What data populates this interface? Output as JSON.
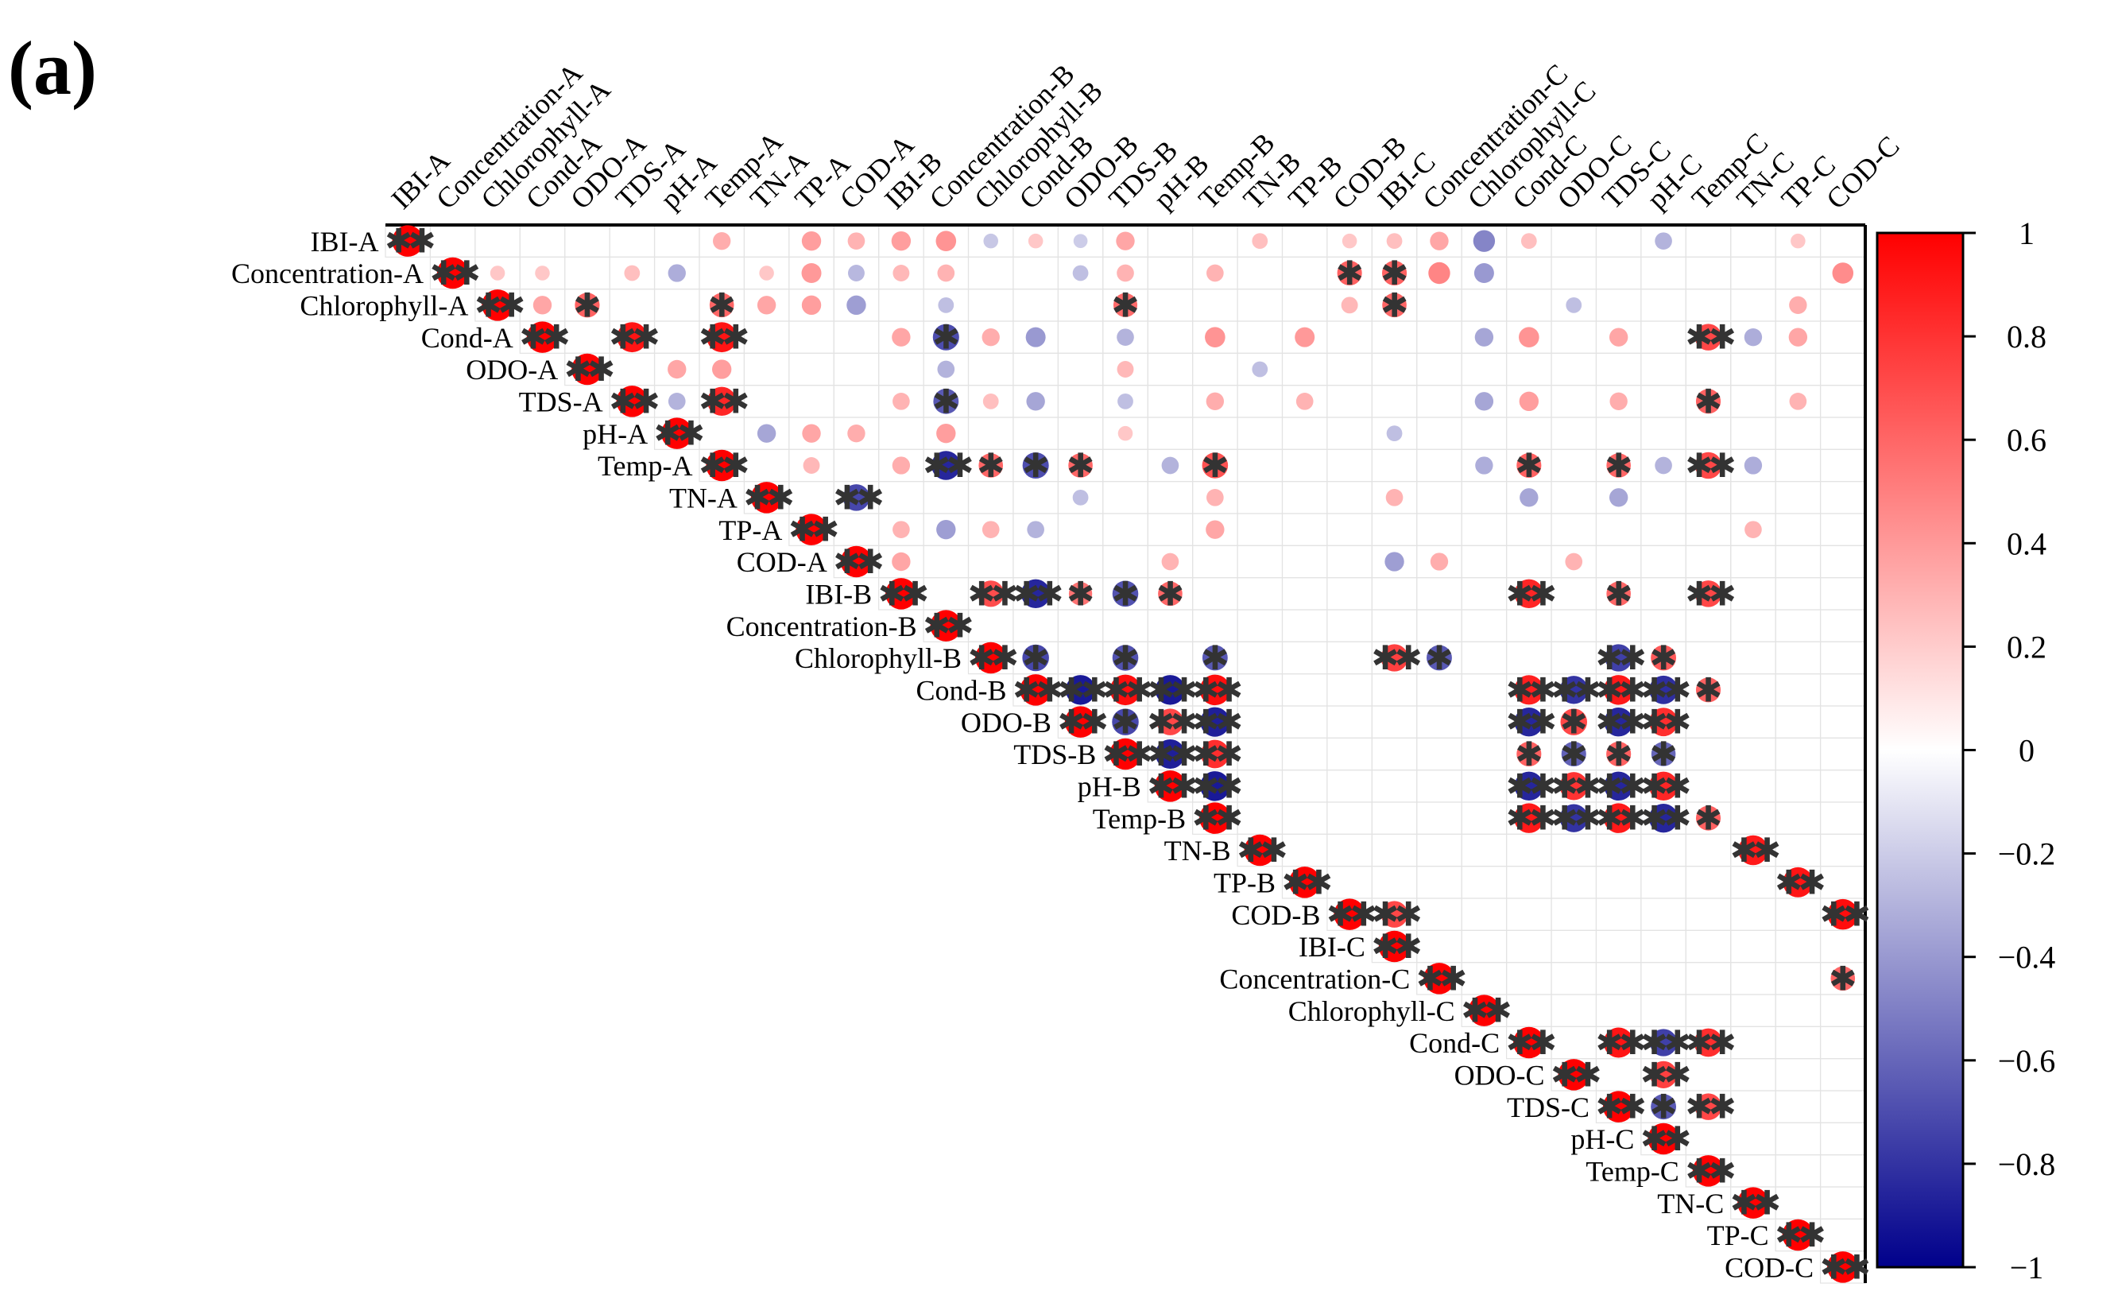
{
  "panel_label": "(a)",
  "chart_data": {
    "type": "heatmap",
    "subtype": "correlation-matrix-upper-triangle-circles",
    "variables": [
      "IBI-A",
      "Concentration-A",
      "Chlorophyll-A",
      "Cond-A",
      "ODO-A",
      "TDS-A",
      "pH-A",
      "Temp-A",
      "TN-A",
      "TP-A",
      "COD-A",
      "IBI-B",
      "Concentration-B",
      "Chlorophyll-B",
      "Cond-B",
      "ODO-B",
      "TDS-B",
      "pH-B",
      "Temp-B",
      "TN-B",
      "TP-B",
      "COD-B",
      "IBI-C",
      "Concentration-C",
      "Chlorophyll-C",
      "Cond-C",
      "ODO-C",
      "TDS-C",
      "pH-C",
      "Temp-C",
      "TN-C",
      "TP-C",
      "COD-C"
    ],
    "colorbar": {
      "range": [
        -1,
        1
      ],
      "ticks": [
        "1",
        "0.8",
        "0.6",
        "0.4",
        "0.2",
        "0",
        "−0.2",
        "−0.4",
        "−0.6",
        "−0.8",
        "−1"
      ],
      "colors": {
        "negative": "#00008B",
        "zero": "#FFFFFF",
        "positive": "#FF0000"
      }
    },
    "diagonal_value": 1,
    "diagonal_marker": "**",
    "significant_cells": [
      {
        "row": "IBI-A",
        "col": "IBI-A",
        "r": 1,
        "mark": "**"
      },
      {
        "row": "Concentration-A",
        "col": "COD-B",
        "r": 0.62,
        "mark": "*"
      },
      {
        "row": "Concentration-A",
        "col": "IBI-C",
        "r": 0.62,
        "mark": "*"
      },
      {
        "row": "Chlorophyll-A",
        "col": "ODO-A",
        "r": 0.62,
        "mark": "*"
      },
      {
        "row": "Chlorophyll-A",
        "col": "Temp-A",
        "r": 0.6,
        "mark": "*"
      },
      {
        "row": "Chlorophyll-A",
        "col": "TDS-B",
        "r": 0.58,
        "mark": "*"
      },
      {
        "row": "Chlorophyll-A",
        "col": "IBI-C",
        "r": 0.6,
        "mark": "*"
      },
      {
        "row": "Cond-A",
        "col": "TDS-A",
        "r": 0.92,
        "mark": "**"
      },
      {
        "row": "Cond-A",
        "col": "Temp-A",
        "r": 0.92,
        "mark": "**"
      },
      {
        "row": "Cond-A",
        "col": "Concentration-B",
        "r": -0.7,
        "mark": "*"
      },
      {
        "row": "Cond-A",
        "col": "Temp-C",
        "r": 0.72,
        "mark": "**"
      },
      {
        "row": "TDS-A",
        "col": "Temp-A",
        "r": 0.85,
        "mark": "**"
      },
      {
        "row": "TDS-A",
        "col": "Concentration-B",
        "r": -0.65,
        "mark": "*"
      },
      {
        "row": "TDS-A",
        "col": "Temp-C",
        "r": 0.62,
        "mark": "*"
      },
      {
        "row": "Temp-A",
        "col": "Concentration-B",
        "r": -0.85,
        "mark": "**"
      },
      {
        "row": "Temp-A",
        "col": "Chlorophyll-B",
        "r": 0.6,
        "mark": "*"
      },
      {
        "row": "Temp-A",
        "col": "Cond-B",
        "r": -0.7,
        "mark": "*"
      },
      {
        "row": "Temp-A",
        "col": "ODO-B",
        "r": 0.6,
        "mark": "*"
      },
      {
        "row": "Temp-A",
        "col": "Temp-B",
        "r": 0.68,
        "mark": "*"
      },
      {
        "row": "Temp-A",
        "col": "Cond-C",
        "r": 0.62,
        "mark": "*"
      },
      {
        "row": "Temp-A",
        "col": "TDS-C",
        "r": 0.6,
        "mark": "*"
      },
      {
        "row": "Temp-A",
        "col": "Temp-C",
        "r": 0.72,
        "mark": "**"
      },
      {
        "row": "TN-A",
        "col": "COD-A",
        "r": -0.72,
        "mark": "**"
      },
      {
        "row": "IBI-B",
        "col": "Chlorophyll-B",
        "r": 0.7,
        "mark": "**"
      },
      {
        "row": "IBI-B",
        "col": "Cond-B",
        "r": -0.85,
        "mark": "**"
      },
      {
        "row": "IBI-B",
        "col": "ODO-B",
        "r": 0.55,
        "mark": "*"
      },
      {
        "row": "IBI-B",
        "col": "TDS-B",
        "r": -0.68,
        "mark": "*"
      },
      {
        "row": "IBI-B",
        "col": "pH-B",
        "r": 0.6,
        "mark": "*"
      },
      {
        "row": "IBI-B",
        "col": "Cond-C",
        "r": 0.85,
        "mark": "**"
      },
      {
        "row": "IBI-B",
        "col": "TDS-C",
        "r": 0.6,
        "mark": "*"
      },
      {
        "row": "IBI-B",
        "col": "Temp-C",
        "r": 0.72,
        "mark": "**"
      },
      {
        "row": "Chlorophyll-B",
        "col": "Cond-B",
        "r": -0.72,
        "mark": "*"
      },
      {
        "row": "Chlorophyll-B",
        "col": "TDS-B",
        "r": -0.68,
        "mark": "*"
      },
      {
        "row": "Chlorophyll-B",
        "col": "Temp-B",
        "r": -0.65,
        "mark": "*"
      },
      {
        "row": "Chlorophyll-B",
        "col": "IBI-C",
        "r": 0.75,
        "mark": "**"
      },
      {
        "row": "Chlorophyll-B",
        "col": "Concentration-C",
        "r": -0.65,
        "mark": "*"
      },
      {
        "row": "Chlorophyll-B",
        "col": "TDS-C",
        "r": -0.75,
        "mark": "**"
      },
      {
        "row": "Chlorophyll-B",
        "col": "pH-C",
        "r": 0.65,
        "mark": "*"
      },
      {
        "row": "Cond-B",
        "col": "ODO-B",
        "r": -0.9,
        "mark": "**"
      },
      {
        "row": "Cond-B",
        "col": "TDS-B",
        "r": 0.95,
        "mark": "**"
      },
      {
        "row": "Cond-B",
        "col": "pH-B",
        "r": -0.9,
        "mark": "**"
      },
      {
        "row": "Cond-B",
        "col": "Temp-B",
        "r": 0.95,
        "mark": "**"
      },
      {
        "row": "Cond-B",
        "col": "Cond-C",
        "r": 0.88,
        "mark": "**"
      },
      {
        "row": "Cond-B",
        "col": "ODO-C",
        "r": -0.8,
        "mark": "**"
      },
      {
        "row": "Cond-B",
        "col": "TDS-C",
        "r": 0.9,
        "mark": "**"
      },
      {
        "row": "Cond-B",
        "col": "pH-C",
        "r": -0.82,
        "mark": "**"
      },
      {
        "row": "Cond-B",
        "col": "Temp-C",
        "r": 0.62,
        "mark": "*"
      },
      {
        "row": "ODO-B",
        "col": "TDS-B",
        "r": -0.72,
        "mark": "*"
      },
      {
        "row": "ODO-B",
        "col": "pH-B",
        "r": 0.72,
        "mark": "**"
      },
      {
        "row": "ODO-B",
        "col": "Temp-B",
        "r": -0.88,
        "mark": "**"
      },
      {
        "row": "ODO-B",
        "col": "Cond-C",
        "r": -0.85,
        "mark": "**"
      },
      {
        "row": "ODO-B",
        "col": "ODO-C",
        "r": 0.72,
        "mark": "*"
      },
      {
        "row": "ODO-B",
        "col": "TDS-C",
        "r": -0.85,
        "mark": "**"
      },
      {
        "row": "ODO-B",
        "col": "pH-C",
        "r": 0.82,
        "mark": "**"
      },
      {
        "row": "TDS-B",
        "col": "pH-B",
        "r": -0.88,
        "mark": "**"
      },
      {
        "row": "TDS-B",
        "col": "Temp-B",
        "r": 0.82,
        "mark": "**"
      },
      {
        "row": "TDS-B",
        "col": "Cond-C",
        "r": 0.62,
        "mark": "*"
      },
      {
        "row": "TDS-B",
        "col": "ODO-C",
        "r": -0.62,
        "mark": "*"
      },
      {
        "row": "TDS-B",
        "col": "TDS-C",
        "r": 0.62,
        "mark": "*"
      },
      {
        "row": "TDS-B",
        "col": "pH-C",
        "r": -0.6,
        "mark": "*"
      },
      {
        "row": "pH-B",
        "col": "Temp-B",
        "r": -0.9,
        "mark": "**"
      },
      {
        "row": "pH-B",
        "col": "Cond-C",
        "r": -0.85,
        "mark": "**"
      },
      {
        "row": "pH-B",
        "col": "ODO-C",
        "r": 0.8,
        "mark": "**"
      },
      {
        "row": "pH-B",
        "col": "TDS-C",
        "r": -0.85,
        "mark": "**"
      },
      {
        "row": "pH-B",
        "col": "pH-C",
        "r": 0.85,
        "mark": "**"
      },
      {
        "row": "Temp-B",
        "col": "Cond-C",
        "r": 0.9,
        "mark": "**"
      },
      {
        "row": "Temp-B",
        "col": "ODO-C",
        "r": -0.8,
        "mark": "**"
      },
      {
        "row": "Temp-B",
        "col": "TDS-C",
        "r": 0.9,
        "mark": "**"
      },
      {
        "row": "Temp-B",
        "col": "pH-C",
        "r": -0.85,
        "mark": "**"
      },
      {
        "row": "Temp-B",
        "col": "Temp-C",
        "r": 0.62,
        "mark": "*"
      },
      {
        "row": "TN-B",
        "col": "TN-C",
        "r": 0.9,
        "mark": "**"
      },
      {
        "row": "TP-B",
        "col": "TP-C",
        "r": 0.92,
        "mark": "**"
      },
      {
        "row": "COD-B",
        "col": "IBI-C",
        "r": 0.72,
        "mark": "**"
      },
      {
        "row": "COD-B",
        "col": "COD-C",
        "r": 0.95,
        "mark": "**"
      },
      {
        "row": "Concentration-C",
        "col": "COD-C",
        "r": 0.6,
        "mark": "*"
      },
      {
        "row": "Cond-C",
        "col": "TDS-C",
        "r": 0.92,
        "mark": "**"
      },
      {
        "row": "Cond-C",
        "col": "pH-C",
        "r": -0.75,
        "mark": "**"
      },
      {
        "row": "Cond-C",
        "col": "Temp-C",
        "r": 0.82,
        "mark": "**"
      },
      {
        "row": "ODO-C",
        "col": "pH-C",
        "r": 0.75,
        "mark": "**"
      },
      {
        "row": "TDS-C",
        "col": "pH-C",
        "r": -0.65,
        "mark": "*"
      },
      {
        "row": "TDS-C",
        "col": "Temp-C",
        "r": 0.72,
        "mark": "**"
      }
    ],
    "nonsignificant_cells": [
      {
        "row": "IBI-A",
        "col": "Temp-A",
        "r": 0.32
      },
      {
        "row": "IBI-A",
        "col": "TP-A",
        "r": 0.38
      },
      {
        "row": "IBI-A",
        "col": "COD-A",
        "r": 0.3
      },
      {
        "row": "IBI-A",
        "col": "IBI-B",
        "r": 0.38
      },
      {
        "row": "IBI-A",
        "col": "Concentration-B",
        "r": 0.42
      },
      {
        "row": "IBI-A",
        "col": "Chlorophyll-B",
        "r": -0.22
      },
      {
        "row": "IBI-A",
        "col": "Cond-B",
        "r": 0.22
      },
      {
        "row": "IBI-A",
        "col": "ODO-B",
        "r": -0.2
      },
      {
        "row": "IBI-A",
        "col": "TDS-B",
        "r": 0.35
      },
      {
        "row": "IBI-A",
        "col": "TN-B",
        "r": 0.25
      },
      {
        "row": "IBI-A",
        "col": "COD-B",
        "r": 0.22
      },
      {
        "row": "IBI-A",
        "col": "IBI-C",
        "r": 0.25
      },
      {
        "row": "IBI-A",
        "col": "Concentration-C",
        "r": 0.35
      },
      {
        "row": "IBI-A",
        "col": "Chlorophyll-C",
        "r": -0.48
      },
      {
        "row": "IBI-A",
        "col": "Cond-C",
        "r": 0.25
      },
      {
        "row": "IBI-A",
        "col": "pH-C",
        "r": -0.3
      },
      {
        "row": "IBI-A",
        "col": "TP-C",
        "r": 0.22
      },
      {
        "row": "Concentration-A",
        "col": "Chlorophyll-A",
        "r": 0.22
      },
      {
        "row": "Concentration-A",
        "col": "Cond-A",
        "r": 0.22
      },
      {
        "row": "Concentration-A",
        "col": "TDS-A",
        "r": 0.25
      },
      {
        "row": "Concentration-A",
        "col": "pH-A",
        "r": -0.32
      },
      {
        "row": "Concentration-A",
        "col": "TN-A",
        "r": 0.22
      },
      {
        "row": "Concentration-A",
        "col": "TP-A",
        "r": 0.4
      },
      {
        "row": "Concentration-A",
        "col": "COD-A",
        "r": -0.28
      },
      {
        "row": "Concentration-A",
        "col": "IBI-B",
        "r": 0.28
      },
      {
        "row": "Concentration-A",
        "col": "Concentration-B",
        "r": 0.3
      },
      {
        "row": "Concentration-A",
        "col": "ODO-B",
        "r": -0.25
      },
      {
        "row": "Concentration-A",
        "col": "TDS-B",
        "r": 0.3
      },
      {
        "row": "Concentration-A",
        "col": "Temp-B",
        "r": 0.3
      },
      {
        "row": "Concentration-A",
        "col": "Concentration-C",
        "r": 0.48
      },
      {
        "row": "Concentration-A",
        "col": "Chlorophyll-C",
        "r": -0.4
      },
      {
        "row": "Concentration-A",
        "col": "COD-C",
        "r": 0.45
      },
      {
        "row": "Chlorophyll-A",
        "col": "Cond-A",
        "r": 0.35
      },
      {
        "row": "Chlorophyll-A",
        "col": "TN-A",
        "r": 0.35
      },
      {
        "row": "Chlorophyll-A",
        "col": "TP-A",
        "r": 0.38
      },
      {
        "row": "Chlorophyll-A",
        "col": "COD-A",
        "r": -0.38
      },
      {
        "row": "Chlorophyll-A",
        "col": "Concentration-B",
        "r": -0.25
      },
      {
        "row": "Chlorophyll-A",
        "col": "COD-B",
        "r": 0.28
      },
      {
        "row": "Chlorophyll-A",
        "col": "ODO-C",
        "r": -0.25
      },
      {
        "row": "Chlorophyll-A",
        "col": "TP-C",
        "r": 0.32
      },
      {
        "row": "Cond-A",
        "col": "IBI-B",
        "r": 0.35
      },
      {
        "row": "Cond-A",
        "col": "Chlorophyll-B",
        "r": 0.32
      },
      {
        "row": "Cond-A",
        "col": "Cond-B",
        "r": -0.4
      },
      {
        "row": "Cond-A",
        "col": "TDS-B",
        "r": -0.3
      },
      {
        "row": "Cond-A",
        "col": "Temp-B",
        "r": 0.42
      },
      {
        "row": "Cond-A",
        "col": "TP-B",
        "r": 0.4
      },
      {
        "row": "Cond-A",
        "col": "Chlorophyll-C",
        "r": -0.35
      },
      {
        "row": "Cond-A",
        "col": "Cond-C",
        "r": 0.42
      },
      {
        "row": "Cond-A",
        "col": "TDS-C",
        "r": 0.35
      },
      {
        "row": "Cond-A",
        "col": "TN-C",
        "r": -0.32
      },
      {
        "row": "Cond-A",
        "col": "TP-C",
        "r": 0.35
      },
      {
        "row": "ODO-A",
        "col": "pH-A",
        "r": 0.35
      },
      {
        "row": "ODO-A",
        "col": "Temp-A",
        "r": 0.38
      },
      {
        "row": "ODO-A",
        "col": "Concentration-B",
        "r": -0.3
      },
      {
        "row": "ODO-A",
        "col": "TDS-B",
        "r": 0.28
      },
      {
        "row": "ODO-A",
        "col": "TN-B",
        "r": -0.25
      },
      {
        "row": "TDS-A",
        "col": "pH-A",
        "r": -0.3
      },
      {
        "row": "TDS-A",
        "col": "IBI-B",
        "r": 0.3
      },
      {
        "row": "TDS-A",
        "col": "Chlorophyll-B",
        "r": 0.25
      },
      {
        "row": "TDS-A",
        "col": "Cond-B",
        "r": -0.35
      },
      {
        "row": "TDS-A",
        "col": "TDS-B",
        "r": -0.25
      },
      {
        "row": "TDS-A",
        "col": "Temp-B",
        "r": 0.32
      },
      {
        "row": "TDS-A",
        "col": "TP-B",
        "r": 0.3
      },
      {
        "row": "TDS-A",
        "col": "Chlorophyll-C",
        "r": -0.35
      },
      {
        "row": "TDS-A",
        "col": "Cond-C",
        "r": 0.38
      },
      {
        "row": "TDS-A",
        "col": "TDS-C",
        "r": 0.32
      },
      {
        "row": "TDS-A",
        "col": "TP-C",
        "r": 0.3
      },
      {
        "row": "pH-A",
        "col": "TN-A",
        "r": -0.35
      },
      {
        "row": "pH-A",
        "col": "TP-A",
        "r": 0.35
      },
      {
        "row": "pH-A",
        "col": "COD-A",
        "r": 0.32
      },
      {
        "row": "pH-A",
        "col": "Concentration-B",
        "r": 0.38
      },
      {
        "row": "pH-A",
        "col": "TDS-B",
        "r": 0.22
      },
      {
        "row": "pH-A",
        "col": "IBI-C",
        "r": -0.25
      },
      {
        "row": "Temp-A",
        "col": "TP-A",
        "r": 0.28
      },
      {
        "row": "Temp-A",
        "col": "IBI-B",
        "r": 0.32
      },
      {
        "row": "Temp-A",
        "col": "pH-B",
        "r": -0.3
      },
      {
        "row": "Temp-A",
        "col": "Chlorophyll-C",
        "r": -0.32
      },
      {
        "row": "Temp-A",
        "col": "pH-C",
        "r": -0.3
      },
      {
        "row": "Temp-A",
        "col": "TN-C",
        "r": -0.32
      },
      {
        "row": "TN-A",
        "col": "ODO-B",
        "r": -0.25
      },
      {
        "row": "TN-A",
        "col": "Temp-B",
        "r": 0.3
      },
      {
        "row": "TN-A",
        "col": "IBI-C",
        "r": 0.3
      },
      {
        "row": "TN-A",
        "col": "Cond-C",
        "r": -0.35
      },
      {
        "row": "TN-A",
        "col": "TDS-C",
        "r": -0.35
      },
      {
        "row": "TP-A",
        "col": "IBI-B",
        "r": 0.3
      },
      {
        "row": "TP-A",
        "col": "Concentration-B",
        "r": -0.38
      },
      {
        "row": "TP-A",
        "col": "Chlorophyll-B",
        "r": 0.3
      },
      {
        "row": "TP-A",
        "col": "Cond-B",
        "r": -0.3
      },
      {
        "row": "TP-A",
        "col": "Temp-B",
        "r": 0.35
      },
      {
        "row": "TP-A",
        "col": "TN-C",
        "r": 0.3
      },
      {
        "row": "COD-A",
        "col": "IBI-B",
        "r": 0.35
      },
      {
        "row": "COD-A",
        "col": "pH-B",
        "r": 0.3
      },
      {
        "row": "COD-A",
        "col": "IBI-C",
        "r": -0.38
      },
      {
        "row": "COD-A",
        "col": "Concentration-C",
        "r": 0.32
      },
      {
        "row": "COD-A",
        "col": "ODO-C",
        "r": 0.3
      }
    ]
  }
}
